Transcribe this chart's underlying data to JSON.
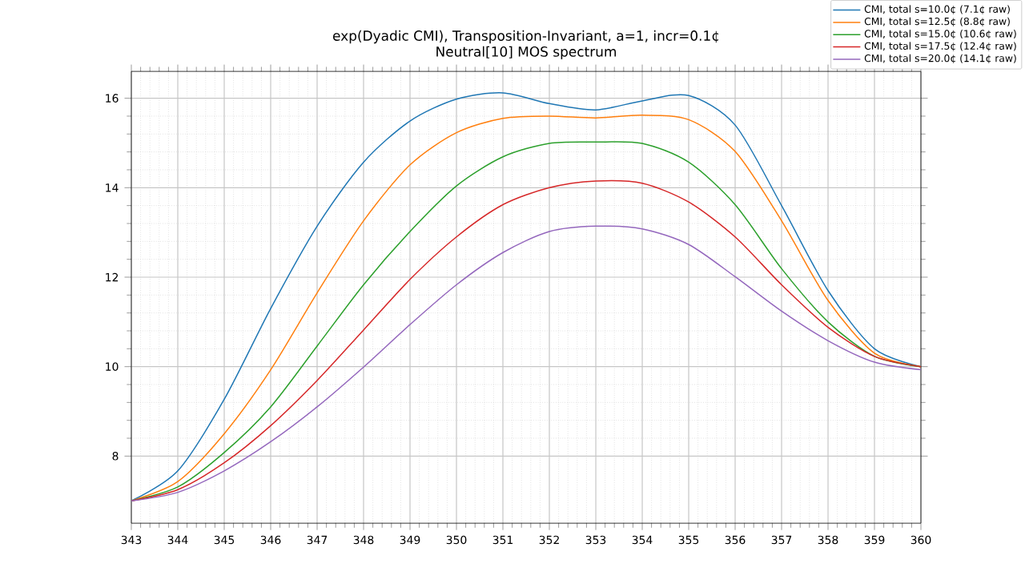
{
  "chart_data": {
    "type": "line",
    "title": "exp(Dyadic CMI), Transposition-Invariant, a=1, incr=0.1¢",
    "subtitle": "Neutral[10] MOS spectrum",
    "x": [
      343,
      344,
      345,
      346,
      347,
      348,
      349,
      350,
      351,
      352,
      353,
      354,
      355,
      356,
      357,
      358,
      359,
      360
    ],
    "series": [
      {
        "name": "CMI, total s=10.0¢ (7.1¢ raw)",
        "color": "#1f77b4",
        "values": [
          7.0,
          7.67,
          9.27,
          11.3,
          13.14,
          14.57,
          15.49,
          15.98,
          16.12,
          15.88,
          15.74,
          15.94,
          16.06,
          15.4,
          13.6,
          11.7,
          10.4,
          10.0
        ]
      },
      {
        "name": "CMI, total s=12.5¢ (8.8¢ raw)",
        "color": "#ff7f0e",
        "values": [
          7.0,
          7.43,
          8.5,
          9.93,
          11.65,
          13.26,
          14.51,
          15.23,
          15.55,
          15.6,
          15.56,
          15.62,
          15.52,
          14.81,
          13.26,
          11.48,
          10.3,
          10.0
        ]
      },
      {
        "name": "CMI, total s=15.0¢ (10.6¢ raw)",
        "color": "#2ca02c",
        "values": [
          7.0,
          7.31,
          8.08,
          9.1,
          10.46,
          11.83,
          13.02,
          14.04,
          14.69,
          14.99,
          15.02,
          14.99,
          14.57,
          13.62,
          12.19,
          11.0,
          10.23,
          10.0
        ]
      },
      {
        "name": "CMI, total s=17.5¢ (12.4¢ raw)",
        "color": "#d62728",
        "values": [
          7.0,
          7.25,
          7.85,
          8.68,
          9.69,
          10.82,
          11.95,
          12.9,
          13.62,
          14.0,
          14.15,
          14.1,
          13.68,
          12.9,
          11.83,
          10.88,
          10.23,
          10.0
        ]
      },
      {
        "name": "CMI, total s=20.0¢ (14.1¢ raw)",
        "color": "#9467bd",
        "values": [
          7.0,
          7.19,
          7.67,
          8.32,
          9.1,
          9.99,
          10.94,
          11.83,
          12.55,
          13.02,
          13.14,
          13.08,
          12.73,
          12.01,
          11.24,
          10.58,
          10.1,
          9.93
        ]
      }
    ],
    "xlim": [
      343,
      360
    ],
    "ylim": [
      6.5,
      16.6
    ],
    "xticks": [
      343,
      344,
      345,
      346,
      347,
      348,
      349,
      350,
      351,
      352,
      353,
      354,
      355,
      356,
      357,
      358,
      359,
      360
    ],
    "yticks": [
      8,
      10,
      12,
      14,
      16
    ],
    "grid": true,
    "legend": "top right",
    "marker": "none",
    "line_style": "solid"
  }
}
